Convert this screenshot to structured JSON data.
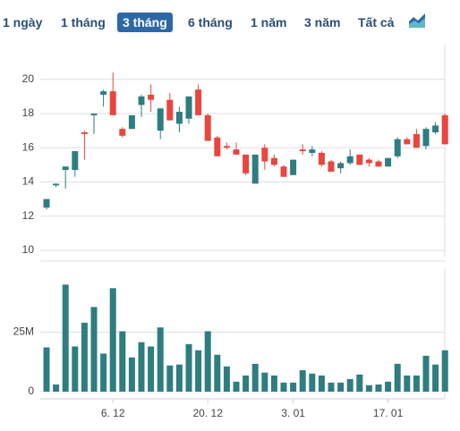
{
  "toolbar": {
    "options": [
      "1 ngày",
      "1 tháng",
      "3 tháng",
      "6 tháng",
      "1 năm",
      "3 năm",
      "Tất cả"
    ],
    "selected": 2
  },
  "chart_data": [
    {
      "type": "candlestick",
      "up_color": "#2e7d80",
      "down_color": "#e8463e",
      "grid": true,
      "ylim": [
        10,
        21.5
      ],
      "yticks": [
        10,
        12,
        14,
        16,
        18,
        20
      ],
      "open": [
        12.5,
        13.8,
        14.7,
        14.7,
        16.9,
        17.9,
        19.1,
        19.3,
        17.1,
        17.1,
        18.5,
        19.1,
        17.0,
        18.8,
        17.4,
        17.7,
        19.4,
        17.9,
        16.6,
        16.1,
        15.9,
        15.6,
        13.9,
        16.0,
        15.4,
        14.9,
        14.4,
        15.9,
        15.7,
        15.7,
        15.2,
        14.8,
        15.1,
        15.6,
        15.3,
        15.2,
        14.9,
        15.5,
        16.5,
        16.8,
        16.1,
        16.9,
        17.9
      ],
      "high": [
        13.0,
        13.9,
        14.9,
        15.8,
        17.0,
        18.0,
        19.4,
        20.4,
        17.2,
        17.9,
        19.1,
        19.7,
        18.3,
        19.2,
        18.4,
        19.0,
        19.7,
        18.0,
        16.7,
        16.3,
        16.3,
        15.6,
        15.6,
        16.2,
        15.6,
        15.0,
        15.3,
        16.2,
        16.1,
        15.8,
        15.3,
        15.2,
        15.9,
        15.6,
        15.4,
        15.3,
        15.4,
        16.6,
        16.6,
        17.1,
        17.2,
        17.5,
        18.0
      ],
      "low": [
        12.4,
        13.7,
        13.6,
        14.3,
        15.3,
        16.8,
        18.4,
        17.9,
        16.6,
        17.1,
        17.8,
        18.1,
        16.5,
        17.6,
        16.9,
        17.4,
        17.9,
        16.4,
        15.5,
        15.9,
        15.6,
        14.4,
        13.9,
        14.7,
        14.9,
        14.3,
        14.4,
        15.6,
        15.5,
        14.9,
        14.6,
        14.5,
        15.0,
        15.0,
        14.9,
        14.9,
        14.9,
        15.4,
        16.2,
        16.0,
        15.9,
        16.8,
        16.2
      ],
      "close": [
        13.0,
        13.9,
        14.9,
        15.8,
        16.8,
        18.0,
        19.3,
        17.9,
        16.7,
        17.9,
        19.0,
        18.8,
        18.3,
        17.6,
        18.1,
        19.0,
        17.9,
        16.4,
        15.5,
        16.0,
        15.6,
        14.5,
        15.6,
        15.2,
        15.0,
        14.3,
        15.3,
        15.8,
        15.9,
        15.0,
        14.6,
        15.1,
        15.5,
        15.0,
        15.1,
        14.9,
        15.4,
        16.5,
        16.2,
        16.0,
        17.1,
        17.3,
        16.2
      ]
    },
    {
      "type": "bar",
      "color": "#2e7d80",
      "ylim": [
        0,
        50000000
      ],
      "yticks": [
        0,
        {
          "value": 25000000,
          "label": "25M"
        }
      ],
      "categories": [
        null,
        null,
        null,
        null,
        null,
        null,
        null,
        "6. 12",
        null,
        null,
        null,
        null,
        null,
        null,
        null,
        null,
        null,
        "20. 12",
        null,
        null,
        null,
        null,
        null,
        null,
        null,
        null,
        "3. 01",
        null,
        null,
        null,
        null,
        null,
        null,
        null,
        null,
        null,
        "17. 01",
        null,
        null,
        null,
        null,
        null,
        null
      ],
      "values": [
        18600000,
        3000000,
        45000000,
        19000000,
        29000000,
        35600000,
        16000000,
        43500000,
        25400000,
        14400000,
        20800000,
        19000000,
        27000000,
        11000000,
        11400000,
        20000000,
        17400000,
        25400000,
        15500000,
        10600000,
        4200000,
        6800000,
        11700000,
        8000000,
        6800000,
        3800000,
        3800000,
        9000000,
        7600000,
        6800000,
        3800000,
        3800000,
        5300000,
        7200000,
        2700000,
        3000000,
        4200000,
        11700000,
        6800000,
        6800000,
        15100000,
        11400000,
        17400000
      ]
    }
  ]
}
